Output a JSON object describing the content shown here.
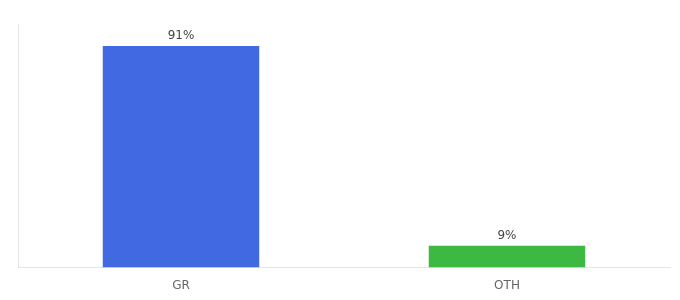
{
  "chart_data": {
    "type": "bar",
    "categories": [
      "GR",
      "OTH"
    ],
    "values": [
      91,
      9
    ],
    "value_labels": [
      "91%",
      "9%"
    ],
    "colors": [
      "#4169e1",
      "#3cb843"
    ],
    "ylim": [
      0,
      100
    ],
    "grid": false,
    "data_labels": true,
    "tick_labels": "x"
  }
}
